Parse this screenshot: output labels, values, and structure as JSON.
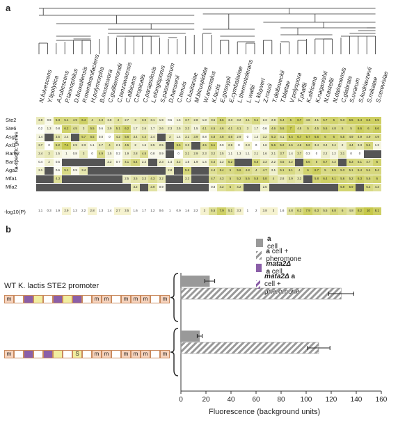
{
  "panel_a_label": "a",
  "panel_b_label": "b",
  "species": [
    "N.fulvescens",
    "Y.lipolytica",
    "A.rubescens",
    "P.tannophilus",
    "D.bruxellensis",
    "P.membranifaciens",
    "H.polymorpha",
    "B.inositovora",
    "C.guilliermondii",
    "C.tanzawaensis",
    "C.albicans",
    "C.tropicalis",
    "C.parapsilosis",
    "L.elongisporus",
    "S.passalidarum",
    "D.hansenii",
    "C.tenuis",
    "C.lusitaniae",
    "M.bicuspidata",
    "W.anomalus",
    "K.lactis",
    "E.gossypii",
    "E.cymbalariae",
    "L.thermotolerans",
    "L.waltii",
    "L.kluyveri",
    "Z.rouxii",
    "T.delbrueckii",
    "T.blattae",
    "V.polyspora",
    "T.phaffii",
    "K.africana",
    "K.naganishii",
    "N.castellii",
    "N.dairenensis",
    "C.glabrata",
    "S.uvarum",
    "S.kudriavzevii",
    "S.mikatae",
    "S.cerevisiae"
  ],
  "vertical_axis_label": "a-specific genes",
  "genes": [
    "Ste2",
    "Ste6",
    "Asg7",
    "Axl1",
    "Ram2",
    "Bar1",
    "Aga2",
    "Mfa1",
    "Mfa2"
  ],
  "heatmap": [
    [
      "2.8",
      "0.9",
      "5.3",
      "5.1",
      "4.9",
      "6.4",
      "4",
      "4.3",
      "2.8",
      "4",
      "2.7",
      "3",
      "3.9",
      "3.1",
      "1.9",
      "0.5",
      "1.6",
      "3.7",
      "2.8",
      "1.8",
      "3.5",
      "5.6",
      "3.3",
      "3.2",
      "4.1",
      "5.1",
      "2.3",
      "2.9",
      "5.4",
      "6",
      "6.7",
      "4.6",
      "4.1",
      "5.7",
      "6",
      "5.3",
      "6.5",
      "6.4",
      "6.5",
      "6.5"
    ],
    [
      "0.2",
      "1.3",
      "0.8",
      "6.2",
      "4.5",
      "3",
      "5.5",
      "0.6",
      "2.9",
      "5.1",
      "6.2",
      "1.7",
      "2.6",
      "1.7",
      "2.6",
      "2.3",
      "2.5",
      "3.3",
      "1.5",
      "4.1",
      "4.5",
      "4.6",
      "4.1",
      "4.1",
      "3",
      "1.7",
      "0.6",
      "4.6",
      "5.6",
      "7",
      "4.5",
      "5",
      "4.5",
      "5.6",
      "4.8",
      "5",
      "5",
      "6.6",
      "6",
      "6.6"
    ],
    [
      "1.4",
      "X",
      "3.5",
      "2.4",
      "X",
      "5.7",
      "5.5",
      "0.8",
      "0",
      "4.2",
      "5.6",
      "3.4",
      "4.4",
      "2.4",
      "X",
      "3",
      "1.4",
      "3.1",
      "3.9",
      "0.8",
      "4.8",
      "4.8",
      "4.6",
      "2.9",
      "0",
      "1.4",
      "3.2",
      "5.3",
      "4.1",
      "6.4",
      "6.7",
      "6.7",
      "6.6",
      "6",
      "6",
      "5.5",
      "4.9",
      "4.9",
      "4.9",
      "4.9"
    ],
    [
      "2.7",
      "0",
      "5.2",
      "7.1",
      "2.9",
      "2.3",
      "1.1",
      "2.7",
      "4",
      "2.1",
      "4.5",
      "2",
      "1.6",
      "2.5",
      "2.5",
      "X",
      "5.6",
      "3.3",
      "X",
      "4.5",
      "6.1",
      "0.9",
      "2.9",
      "0",
      "2.3",
      "0",
      "1.6",
      "5.6",
      "5.2",
      "4.6",
      "4.6",
      "5.2",
      "3.4",
      "3.4",
      "3.4",
      "2",
      "4.4",
      "3.3",
      "5.4",
      "1.3"
    ],
    [
      "2.4",
      "3",
      "1.5",
      "1",
      "0.8",
      "3",
      "0",
      "4.9",
      "1.5",
      "0.2",
      "1.9",
      "2.8",
      "4.5",
      "0.8",
      "0.9",
      "X",
      "0",
      "3.1",
      "2.9",
      "2.3",
      "3.2",
      "2.5",
      "1.1",
      "1.3",
      "1.1",
      "2.1",
      "1.6",
      "2.1",
      "3.7",
      "1.4",
      "3.7",
      "0.3",
      "0",
      "2.2",
      "1.2",
      "3.1",
      "0",
      "0",
      "X",
      "X"
    ],
    [
      "0.4",
      "2",
      "0.5",
      "X",
      "X",
      "X",
      "X",
      "X",
      "2.2",
      "0.7",
      "4.1",
      "5.4",
      "2.2",
      "X",
      "2.3",
      "1.4",
      "3.2",
      "1.5",
      "1.9",
      "1.4",
      "4.4",
      "2.2",
      "5.2",
      "X",
      "X",
      "5.6",
      "3.3",
      "2.2",
      "4.5",
      "4.2",
      "X",
      "5.6",
      "5",
      "5.7",
      "4.2",
      "X",
      "5.3",
      "5.1",
      "4.7",
      "6"
    ],
    [
      "2.1",
      "X",
      "0.6",
      "5.1",
      "0.9",
      "3.4",
      "X",
      "X",
      "X",
      "X",
      "X",
      "X",
      "X",
      "X",
      "X",
      "2.8",
      "X",
      "5.6",
      "X",
      "X",
      "4.4",
      "5.4",
      "5",
      "5.6",
      "4.8",
      "4",
      "4.7",
      "2.1",
      "5.1",
      "5.1",
      "4",
      "6",
      "6.7",
      "5",
      "5.5",
      "5.3",
      "5.1",
      "5.4",
      "5.4",
      "5.4"
    ],
    [
      "X",
      "X",
      "4.3",
      "X",
      "X",
      "X",
      "X",
      "X",
      "X",
      "X",
      "2.5",
      "3.5",
      "3.3",
      "4.3",
      "3.2",
      "X",
      "X",
      "3.3",
      "X",
      "X",
      "4.7",
      "4.3",
      "5",
      "5.2",
      "5.6",
      "5.8",
      "5.8",
      "4",
      "2.8",
      "3.9",
      "3.3",
      "X",
      "5.8",
      "6.4",
      "6.1",
      "5.6",
      "5.2",
      "6.3",
      "5.6",
      "6"
    ],
    [
      "X",
      "X",
      "X",
      "X",
      "X",
      "X",
      "X",
      "X",
      "X",
      "X",
      "X",
      "3.2",
      "X",
      "3.9",
      "0.9",
      "X",
      "X",
      "X",
      "X",
      "X",
      "0.8",
      "4.2",
      "5",
      "4.2",
      "X",
      "X",
      "2.5",
      "X",
      "X",
      "X",
      "X",
      "X",
      "X",
      "X",
      "X",
      "5.9",
      "5.9",
      "X",
      "5.2",
      "4.3"
    ]
  ],
  "pval_label": "-log10(P)",
  "pvals": [
    "1.1",
    "0.3",
    "1.9",
    "2.9",
    "1.3",
    "2.2",
    "2.8",
    "1.3",
    "1.4",
    "2.7",
    "3.5",
    "1.6",
    "1.7",
    "1.2",
    "0.6",
    "1",
    "0.9",
    "1.6",
    "2.2",
    "3",
    "5.5",
    "7.9",
    "5.1",
    "3.3",
    "1",
    "2",
    "3.8",
    "3",
    "1.6",
    "4.8",
    "6.2",
    "7.9",
    "6.3",
    "5.5",
    "6.8",
    "6",
    "4.8",
    "8.2",
    "10",
    "8.1"
  ],
  "legend": [
    {
      "bold": "a",
      "rest": " cell",
      "pattern": "solid-gray"
    },
    {
      "bold": "a",
      "rest": " cell + pheromone",
      "pattern": "hatch-gray"
    },
    {
      "bold": "mata2Δ a",
      "rest": " cell",
      "pattern": "solid-purple"
    },
    {
      "bold": "mata2Δ a",
      "rest": " cell + pheromone",
      "pattern": "hatch-purple"
    }
  ],
  "promoter_label": "WT K. lactis STE2 promoter",
  "construct_1": [
    "m",
    "",
    "p",
    "y",
    "",
    "p",
    "y",
    "p",
    "",
    "m",
    "m",
    "",
    "m",
    "m",
    "m",
    "",
    "m"
  ],
  "construct_2": [
    "m",
    "",
    "p",
    "",
    "p",
    "y",
    "",
    "S",
    "",
    "m",
    "m",
    "",
    "m",
    "m",
    "m",
    "",
    "m"
  ],
  "bars": [
    {
      "label": "WT a cell",
      "value": 23,
      "err": 4
    },
    {
      "label": "WT a cell + pheromone",
      "value": 128,
      "err": 10
    },
    {
      "label": "mutant a cell",
      "value": 15,
      "err": 2
    },
    {
      "label": "mutant a cell + pheromone",
      "value": 110,
      "err": 9
    }
  ],
  "x_ticks": [
    "0",
    "20",
    "40",
    "60",
    "80",
    "100",
    "120",
    "140",
    "160"
  ],
  "x_axis_label": "Fluorescence (background units)",
  "colors": {
    "heat_high": "#c6c84a",
    "heat_low": "#ffffff",
    "missing": "#555555",
    "bar_gray": "#999999",
    "purple": "#8b5fa8",
    "yellow": "#f2eea0",
    "mbox": "#f6d3bd"
  }
}
